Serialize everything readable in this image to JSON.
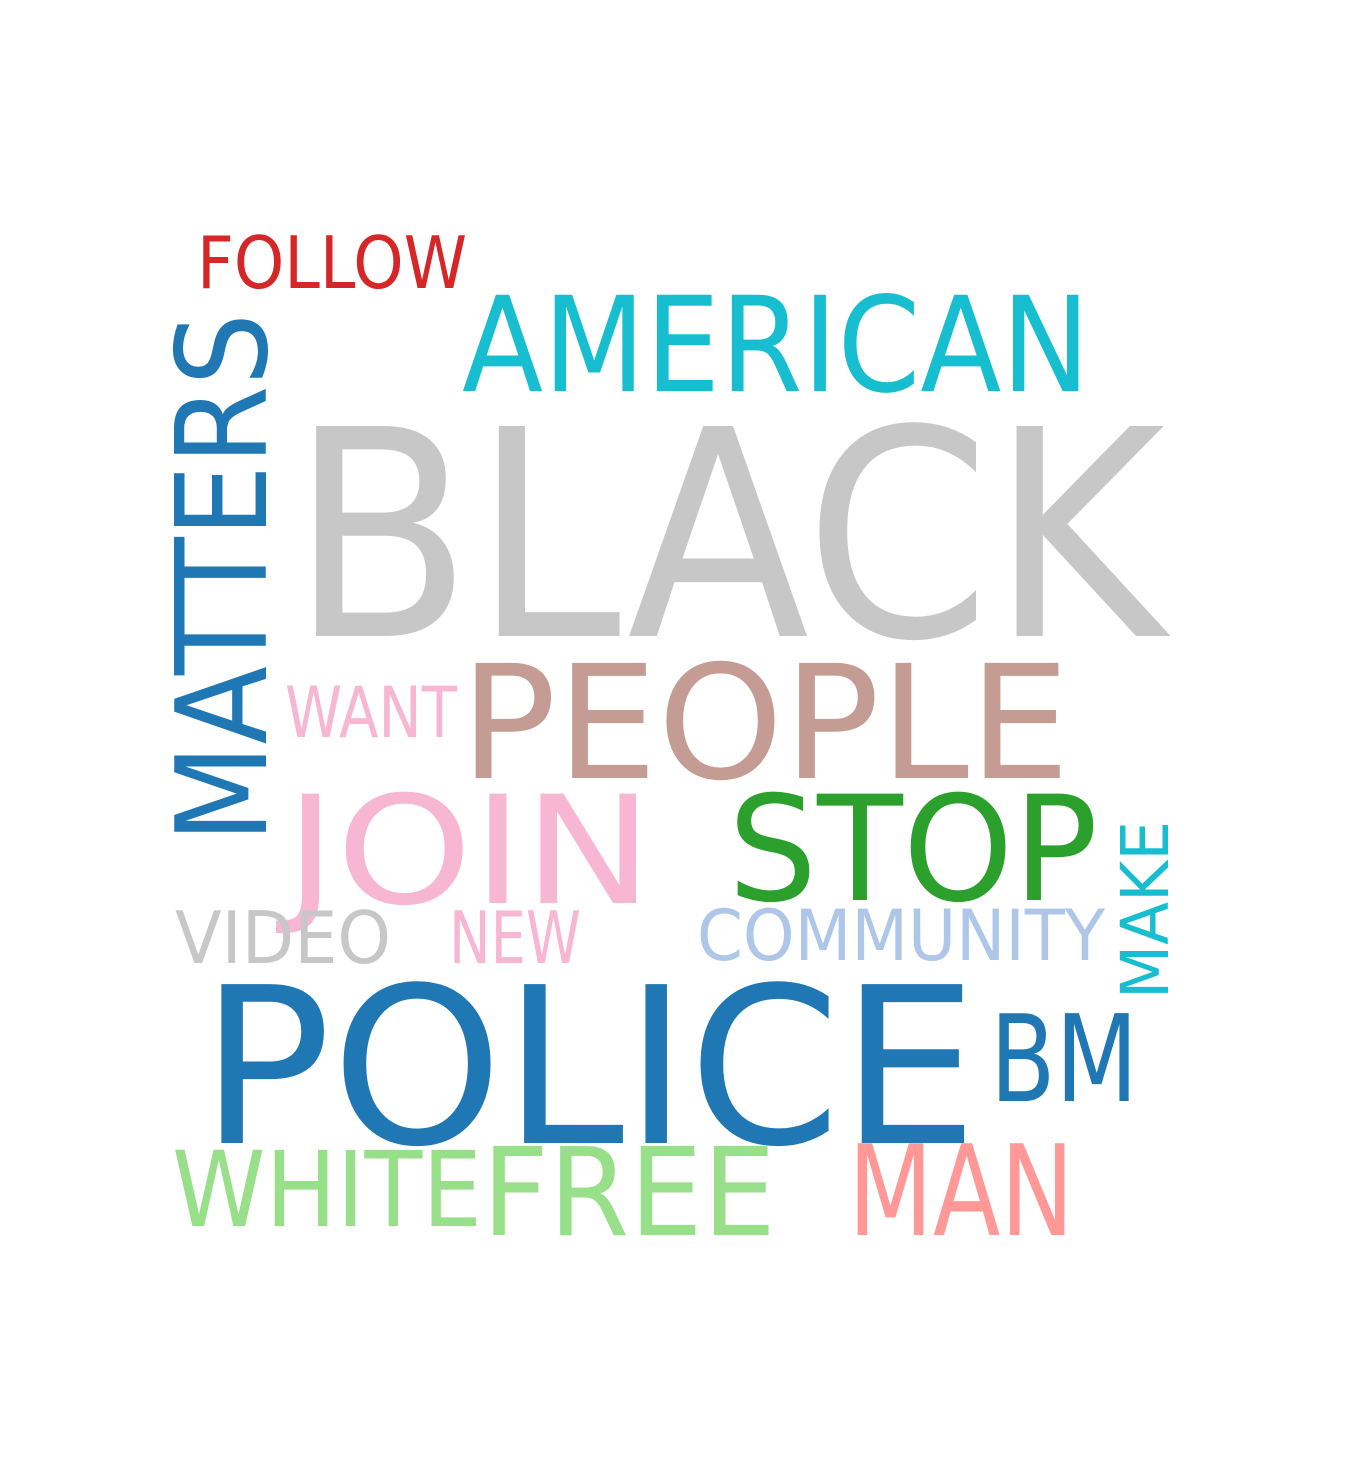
{
  "words": [
    {
      "key": "black",
      "text": "BLACK",
      "color": "#c7c7c7"
    },
    {
      "key": "police",
      "text": "POLICE",
      "color": "#1f77b4"
    },
    {
      "key": "people",
      "text": "PEOPLE",
      "color": "#c49c94"
    },
    {
      "key": "american",
      "text": "AMERICAN",
      "color": "#17becf"
    },
    {
      "key": "matters",
      "text": "MATTERS",
      "color": "#1f77b4"
    },
    {
      "key": "join",
      "text": "JOIN",
      "color": "#f7b6d2"
    },
    {
      "key": "stop",
      "text": "STOP",
      "color": "#2ca02c"
    },
    {
      "key": "free",
      "text": "FREE",
      "color": "#98df8a"
    },
    {
      "key": "man",
      "text": "MAN",
      "color": "#ff9896"
    },
    {
      "key": "bm",
      "text": "BM",
      "color": "#1f77b4"
    },
    {
      "key": "white",
      "text": "WHITE",
      "color": "#98df8a"
    },
    {
      "key": "follow",
      "text": "FOLLOW",
      "color": "#d62728"
    },
    {
      "key": "community",
      "text": "COMMUNITY",
      "color": "#aec7e8"
    },
    {
      "key": "video",
      "text": "VIDEO",
      "color": "#c7c7c7"
    },
    {
      "key": "new",
      "text": "NEW",
      "color": "#f7b6d2"
    },
    {
      "key": "want",
      "text": "WANT",
      "color": "#f7b6d2"
    },
    {
      "key": "make",
      "text": "MAKE",
      "color": "#17becf"
    }
  ]
}
